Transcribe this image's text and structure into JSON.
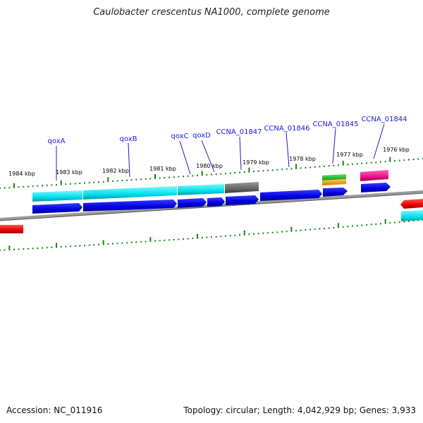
{
  "title": "Caulobacter crescentus NA1000, complete genome",
  "footer": {
    "accession": "Accession: NC_011916",
    "topology": "Topology: circular; Length: 4,042,929 bp; Genes: 3,933"
  },
  "ticks": [
    "1984 kbp",
    "1983 kbp",
    "1982 kbp",
    "1981 kbp",
    "1980 kbp",
    "1979 kbp",
    "1978 kbp",
    "1977 kbp",
    "1976 kbp"
  ],
  "genes": [
    "qoxA",
    "qoxB",
    "qoxC",
    "qoxD",
    "CCNA_01847",
    "CCNA_01846",
    "CCNA_01845",
    "CCNA_01844"
  ],
  "colors": {
    "backbone": "#808080",
    "cds_strand": "#0000e6",
    "feature_cyan": "#00e5f0",
    "feature_gray": "#666666",
    "feature_green": "#22bb22",
    "feature_orange": "#ff9900",
    "feature_magenta": "#ee1188",
    "feature_red": "#ee0000",
    "tick": "#118811",
    "label": "#1a1acc"
  }
}
